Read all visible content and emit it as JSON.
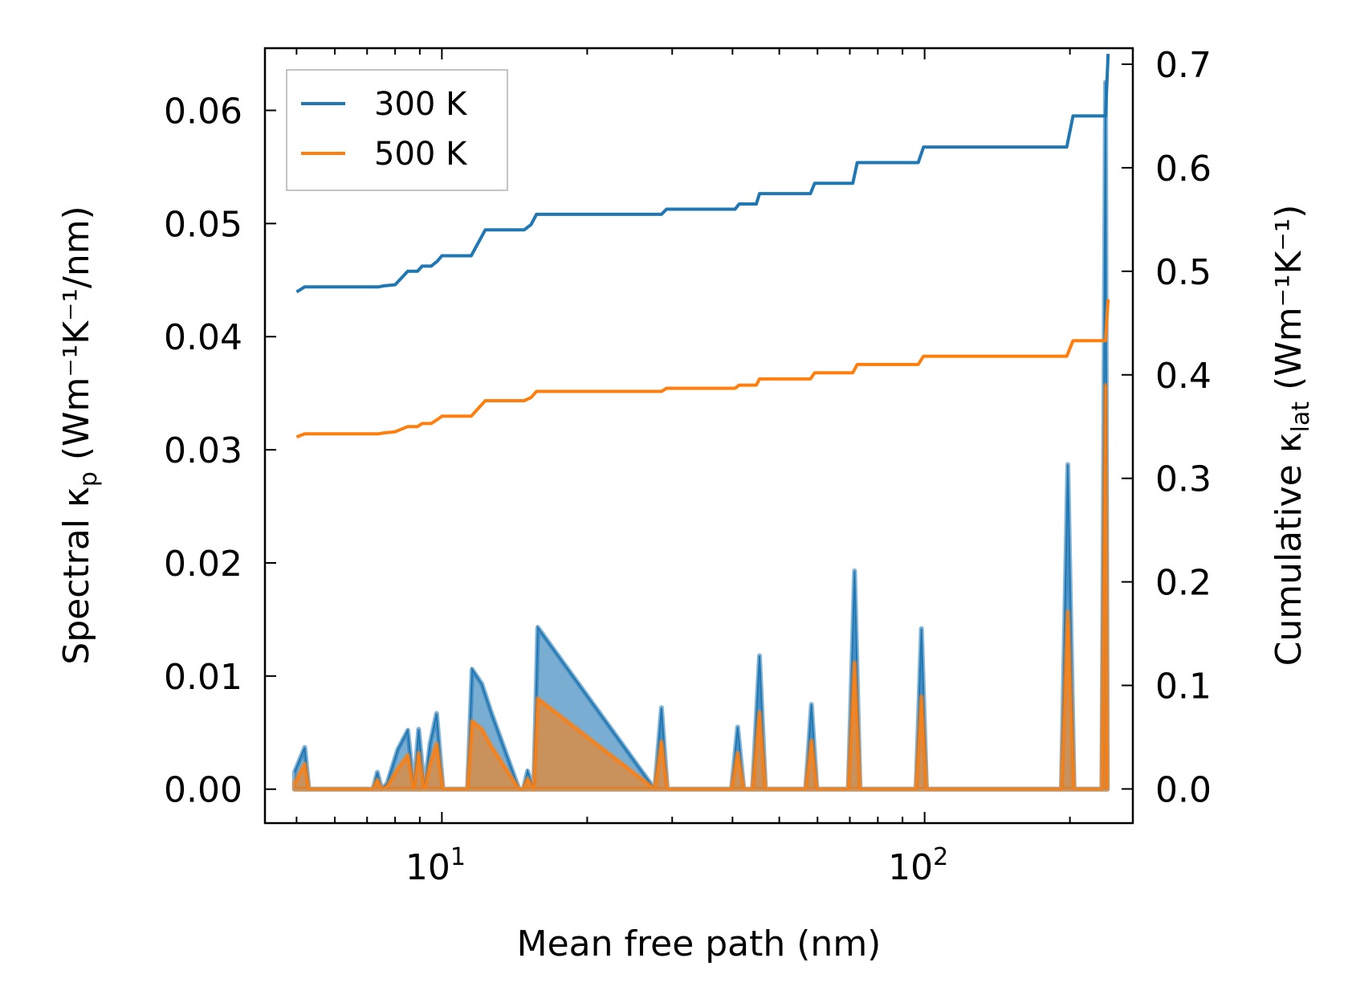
{
  "chart_data": {
    "type": "line",
    "xlabel": "Mean free path (nm)",
    "ylabel_left": {
      "prefix": "Spectral κ",
      "sub": "p",
      "unit": " (Wm⁻¹K⁻¹/nm)"
    },
    "ylabel_right": {
      "prefix": "Cumulative κ",
      "sub": "lat",
      "unit": " (Wm⁻¹K⁻¹)"
    },
    "xscale": "log",
    "xlim": [
      4.3,
      270
    ],
    "ylim_left": [
      -0.003,
      0.0655
    ],
    "ylim_right": [
      -0.033,
      0.7155
    ],
    "x_ticks": [
      {
        "base": "10",
        "exp": "1",
        "value": 10
      },
      {
        "base": "10",
        "exp": "2",
        "value": 100
      }
    ],
    "y_ticks_left": [
      "0.00",
      "0.01",
      "0.02",
      "0.03",
      "0.04",
      "0.05",
      "0.06"
    ],
    "y_tick_values_left": [
      0,
      0.01,
      0.02,
      0.03,
      0.04,
      0.05,
      0.06
    ],
    "y_ticks_right": [
      "0.0",
      "0.1",
      "0.2",
      "0.3",
      "0.4",
      "0.5",
      "0.6",
      "0.7"
    ],
    "y_tick_values_right": [
      0,
      0.1,
      0.2,
      0.3,
      0.4,
      0.5,
      0.6,
      0.7
    ],
    "legend": {
      "position": "upper-left",
      "entries": [
        "300 K",
        "500 K"
      ]
    },
    "colors": {
      "300 K": "#1f77b4",
      "500 K": "#ff7f0e"
    },
    "series": [
      {
        "name": "300 K",
        "axis": "right",
        "kind": "cumulative",
        "x": [
          5.0,
          5.2,
          7.4,
          7.6,
          8.0,
          8.5,
          8.9,
          9.1,
          9.5,
          9.8,
          10.0,
          11.5,
          12.3,
          14.8,
          15.3,
          15.7,
          28.5,
          29.2,
          40.5,
          41.3,
          44.8,
          45.5,
          58.0,
          59.2,
          71.0,
          72.5,
          97.0,
          99.5,
          197,
          203,
          237,
          240
        ],
        "values": [
          0.48,
          0.485,
          0.485,
          0.486,
          0.487,
          0.5,
          0.5,
          0.505,
          0.505,
          0.51,
          0.515,
          0.515,
          0.54,
          0.54,
          0.545,
          0.555,
          0.555,
          0.56,
          0.56,
          0.565,
          0.565,
          0.575,
          0.575,
          0.585,
          0.585,
          0.605,
          0.605,
          0.62,
          0.62,
          0.65,
          0.65,
          0.71
        ]
      },
      {
        "name": "500 K",
        "axis": "right",
        "kind": "cumulative",
        "x": [
          5.0,
          5.2,
          7.4,
          7.6,
          8.0,
          8.5,
          8.9,
          9.1,
          9.5,
          9.8,
          10.0,
          11.5,
          12.3,
          14.8,
          15.3,
          15.7,
          28.5,
          29.2,
          40.5,
          41.3,
          44.8,
          45.5,
          58.0,
          59.2,
          71.0,
          72.5,
          97.0,
          99.5,
          197,
          203,
          237,
          240
        ],
        "values": [
          0.34,
          0.343,
          0.343,
          0.344,
          0.345,
          0.35,
          0.35,
          0.353,
          0.353,
          0.357,
          0.36,
          0.36,
          0.375,
          0.375,
          0.378,
          0.384,
          0.384,
          0.387,
          0.387,
          0.39,
          0.39,
          0.396,
          0.396,
          0.402,
          0.402,
          0.41,
          0.41,
          0.418,
          0.418,
          0.433,
          0.433,
          0.473
        ]
      },
      {
        "name": "300 K",
        "axis": "left",
        "kind": "spectral",
        "x": [
          4.95,
          5.2,
          5.3,
          7.2,
          7.35,
          7.5,
          7.7,
          8.1,
          8.5,
          8.75,
          8.95,
          9.2,
          9.45,
          9.75,
          10.05,
          10.35,
          11.3,
          11.55,
          12.1,
          12.65,
          14.45,
          14.75,
          15.05,
          15.5,
          15.8,
          27.6,
          28.5,
          29.3,
          39.8,
          41.0,
          42.2,
          44.0,
          45.5,
          46.8,
          56.7,
          58.3,
          59.8,
          69.5,
          71.6,
          73.5,
          96.0,
          98.5,
          100.9,
          192,
          198,
          204,
          233,
          237,
          239
        ],
        "values": [
          0.0015,
          0.0037,
          0,
          0,
          0.0015,
          0,
          0.0005,
          0.0035,
          0.0052,
          0,
          0.0053,
          0,
          0.004,
          0.0067,
          0,
          0,
          0,
          0.0106,
          0.0093,
          0.0068,
          0,
          0,
          0.0016,
          0,
          0.0143,
          0,
          0.0072,
          0,
          0,
          0.0055,
          0,
          0,
          0.0118,
          0,
          0,
          0.0075,
          0,
          0,
          0.0193,
          0,
          0,
          0.0142,
          0,
          0,
          0.0287,
          0,
          0,
          0.0625,
          0
        ]
      },
      {
        "name": "500 K",
        "axis": "left",
        "kind": "spectral",
        "x": [
          4.95,
          5.2,
          5.3,
          7.2,
          7.35,
          7.5,
          7.7,
          8.1,
          8.5,
          8.75,
          8.95,
          9.2,
          9.45,
          9.75,
          10.05,
          10.35,
          11.3,
          11.55,
          12.1,
          12.65,
          14.45,
          14.75,
          15.05,
          15.5,
          15.8,
          27.6,
          28.5,
          29.3,
          39.8,
          41.0,
          42.2,
          44.0,
          45.5,
          46.8,
          56.7,
          58.3,
          59.8,
          69.5,
          71.6,
          73.5,
          96.0,
          98.5,
          100.9,
          192,
          198,
          204,
          233,
          237,
          239
        ],
        "values": [
          0.0005,
          0.0022,
          0,
          0,
          0.0008,
          0,
          0.0002,
          0.0018,
          0.003,
          0,
          0.0032,
          0,
          0.0022,
          0.004,
          0,
          0,
          0,
          0.006,
          0.0053,
          0.0038,
          0,
          0,
          0.0009,
          0,
          0.008,
          0,
          0.0042,
          0,
          0,
          0.0032,
          0,
          0,
          0.0068,
          0,
          0,
          0.0043,
          0,
          0,
          0.0112,
          0,
          0,
          0.0082,
          0,
          0,
          0.0157,
          0,
          0,
          0.0357,
          0
        ]
      }
    ]
  }
}
